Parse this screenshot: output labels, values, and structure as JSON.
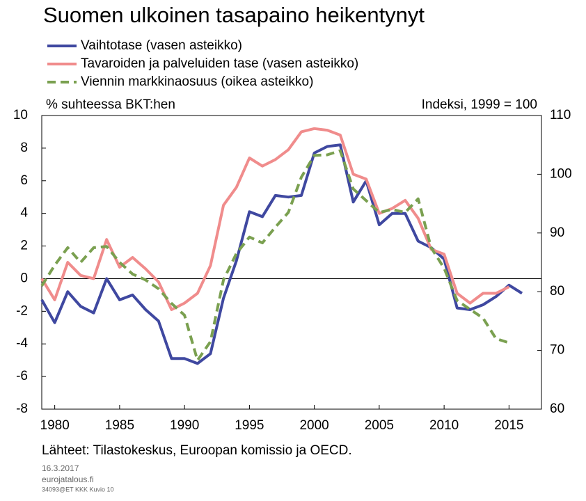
{
  "chart_data": {
    "type": "line",
    "title": "Suomen ulkoinen tasapaino heikentynyt",
    "y_label": "% suhteessa BKT:hen",
    "y2_label": "Indeksi, 1999 = 100",
    "source": "Lähteet: Tilastokeskus, Euroopan komissio ja OECD.",
    "footer": [
      "16.3.2017",
      "eurojatalous.fi",
      "34093@ET KKK Kuvio 10"
    ],
    "x": [
      1979,
      1980,
      1981,
      1982,
      1983,
      1984,
      1985,
      1986,
      1987,
      1988,
      1989,
      1990,
      1991,
      1992,
      1993,
      1994,
      1995,
      1996,
      1997,
      1998,
      1999,
      2000,
      2001,
      2002,
      2003,
      2004,
      2005,
      2006,
      2007,
      2008,
      2009,
      2010,
      2011,
      2012,
      2013,
      2014,
      2015,
      2016
    ],
    "series": [
      {
        "name": "Vaihtotase (vasen asteikko)",
        "color": "#3f48a0",
        "dash": false,
        "values": [
          -1.3,
          -2.7,
          -0.8,
          -1.7,
          -2.1,
          0.0,
          -1.3,
          -1.0,
          -1.9,
          -2.6,
          -4.9,
          -4.9,
          -5.2,
          -4.6,
          -1.2,
          1.1,
          4.1,
          3.8,
          5.1,
          5.0,
          5.1,
          7.7,
          8.1,
          8.2,
          4.7,
          6.0,
          3.3,
          4.0,
          4.0,
          2.3,
          1.9,
          1.2,
          -1.8,
          -1.9,
          -1.6,
          -1.1,
          -0.4,
          -0.9
        ]
      },
      {
        "name": "Tavaroiden ja palveluiden tase (vasen asteikko)",
        "color": "#f08c8c",
        "dash": false,
        "values": [
          0.0,
          -1.3,
          1.0,
          0.2,
          0.0,
          2.4,
          0.7,
          1.3,
          0.6,
          -0.2,
          -1.9,
          -1.5,
          -0.9,
          0.8,
          4.5,
          5.6,
          7.4,
          6.9,
          7.3,
          7.9,
          9.0,
          9.2,
          9.1,
          8.8,
          6.4,
          6.1,
          4.0,
          4.3,
          4.8,
          3.7,
          1.8,
          1.5,
          -0.9,
          -1.5,
          -0.9,
          -0.9,
          -0.5,
          null
        ]
      },
      {
        "name": "Viennin markkinaosuus (oikea asteikko)",
        "color": "#7aa050",
        "dash": true,
        "axis": "y2",
        "values": [
          81,
          84.5,
          87.5,
          85,
          87.5,
          87.7,
          85,
          83,
          82,
          80.5,
          78,
          76,
          68.3,
          71.5,
          82,
          86.5,
          89.3,
          88.3,
          91,
          93.5,
          99.5,
          103.2,
          103.3,
          104,
          97.5,
          95.5,
          93.5,
          94,
          93.5,
          95.8,
          87.5,
          84,
          78.5,
          77,
          75.5,
          72,
          71.3,
          null
        ]
      }
    ],
    "xlim": [
      1979,
      2017.5
    ],
    "xticks": [
      1980,
      1985,
      1990,
      1995,
      2000,
      2005,
      2010,
      2015
    ],
    "ylim": [
      -8,
      10
    ],
    "yticks": [
      -8,
      -6,
      -4,
      -2,
      0,
      2,
      4,
      6,
      8,
      10
    ],
    "y2lim": [
      60,
      110
    ],
    "y2ticks": [
      60,
      70,
      80,
      90,
      100,
      110
    ]
  }
}
